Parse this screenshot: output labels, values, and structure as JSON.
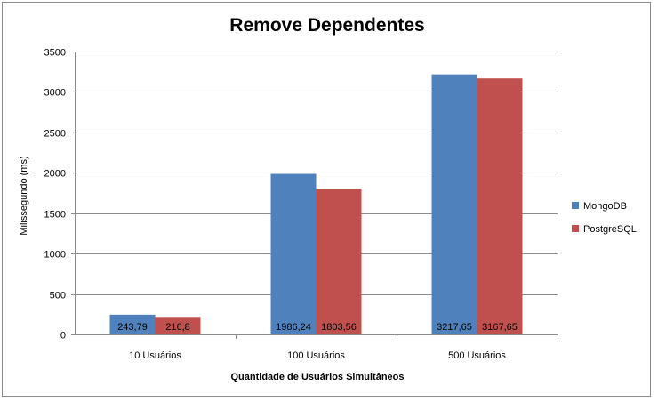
{
  "chart_data": {
    "type": "bar",
    "title": "Remove Dependentes",
    "xlabel": "Quantidade de Usuários Simultâneos",
    "ylabel": "Milissegundo (ms)",
    "categories": [
      "10 Usuários",
      "100 Usuários",
      "500 Usuários"
    ],
    "series": [
      {
        "name": "MongoDB",
        "color": "#4f81bd",
        "values": [
          243.79,
          1986.24,
          3217.65
        ],
        "labels": [
          "243,79",
          "1986,24",
          "3217,65"
        ]
      },
      {
        "name": "PostgreSQL",
        "color": "#c0504d",
        "values": [
          216.8,
          1803.56,
          3167.65
        ],
        "labels": [
          "216,8",
          "1803,56",
          "3167,65"
        ]
      }
    ],
    "ylim": [
      0,
      3500
    ],
    "yticks": [
      0,
      500,
      1000,
      1500,
      2000,
      2500,
      3000,
      3500
    ],
    "grid": true,
    "legend_position": "right"
  }
}
